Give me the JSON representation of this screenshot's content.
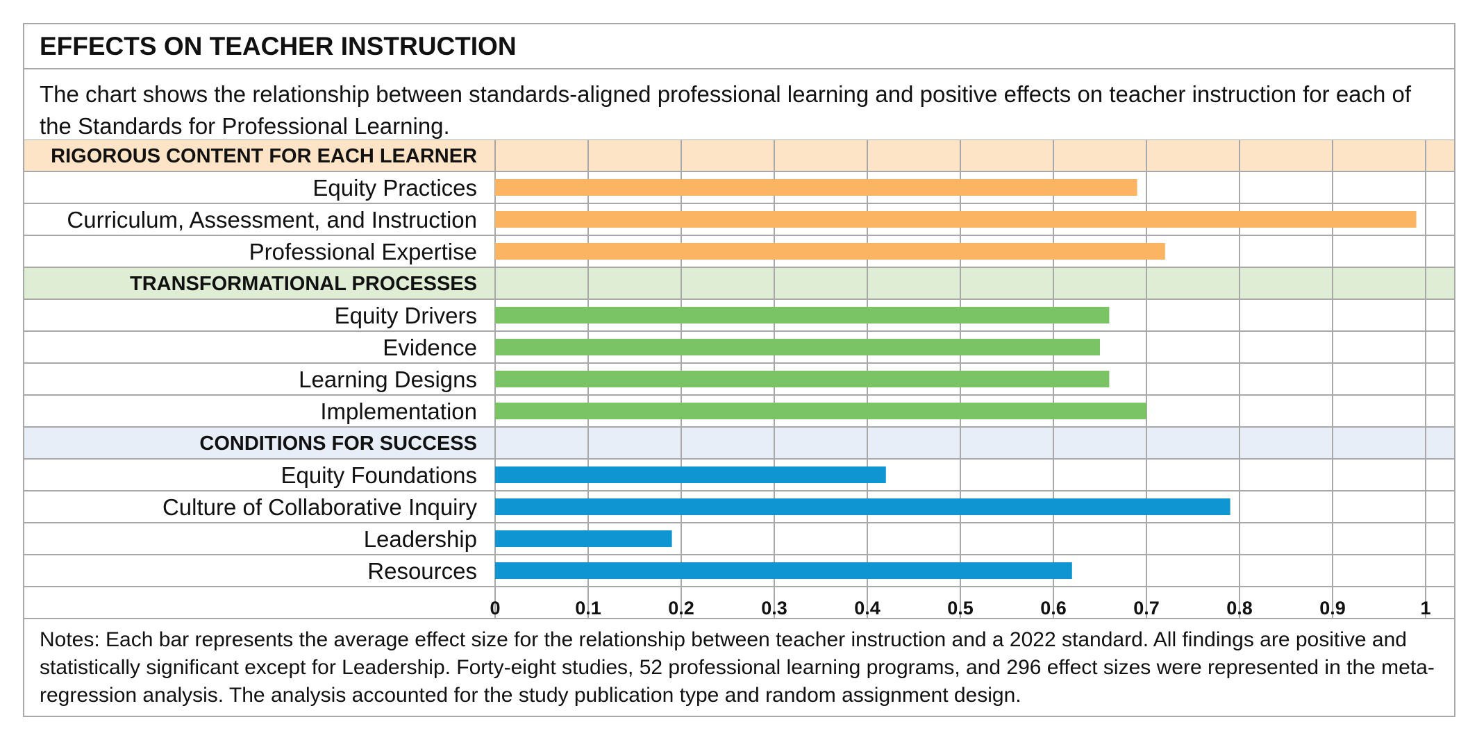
{
  "header": {
    "title": "EFFECTS ON TEACHER INSTRUCTION",
    "subtitle": "The chart shows the relationship between standards-aligned professional learning and positive effects on teacher instruction for each of the Standards for Professional Learning."
  },
  "notes": "Notes: Each bar represents the average effect size for the relationship between teacher instruction and a 2022 standard. All findings are positive and statistically significant except for Leadership. Forty-eight studies, 52 professional learning programs, and 296 effect sizes were represented in the meta-regression analysis. The analysis accounted for the study publication type and random assignment design.",
  "chart_data": {
    "type": "bar",
    "orientation": "horizontal",
    "xlim": [
      0,
      1
    ],
    "ticks": [
      "0",
      "0.1",
      "0.2",
      "0.3",
      "0.4",
      "0.5",
      "0.6",
      "0.7",
      "0.8",
      "0.9",
      "1"
    ],
    "grid": true,
    "groups": [
      {
        "label": "RIGOROUS CONTENT FOR EACH LEARNER",
        "band_color": "#fde4c6",
        "bar_color": "#fbb461",
        "items": [
          {
            "label": "Equity Practices",
            "value": 0.69
          },
          {
            "label": "Curriculum, Assessment, and Instruction",
            "value": 0.99
          },
          {
            "label": "Professional Expertise",
            "value": 0.72
          }
        ]
      },
      {
        "label": "TRANSFORMATIONAL  PROCESSES",
        "band_color": "#deedd4",
        "bar_color": "#7bc466",
        "items": [
          {
            "label": "Equity Drivers",
            "value": 0.66
          },
          {
            "label": "Evidence",
            "value": 0.65
          },
          {
            "label": "Learning Designs",
            "value": 0.66
          },
          {
            "label": "Implementation",
            "value": 0.7
          }
        ]
      },
      {
        "label": "CONDITIONS FOR SUCCESS",
        "band_color": "#e8eef8",
        "bar_color": "#0f96d2",
        "items": [
          {
            "label": "Equity Foundations",
            "value": 0.42
          },
          {
            "label": "Culture of Collaborative Inquiry",
            "value": 0.79
          },
          {
            "label": "Leadership",
            "value": 0.19
          },
          {
            "label": "Resources",
            "value": 0.62
          }
        ]
      }
    ]
  }
}
